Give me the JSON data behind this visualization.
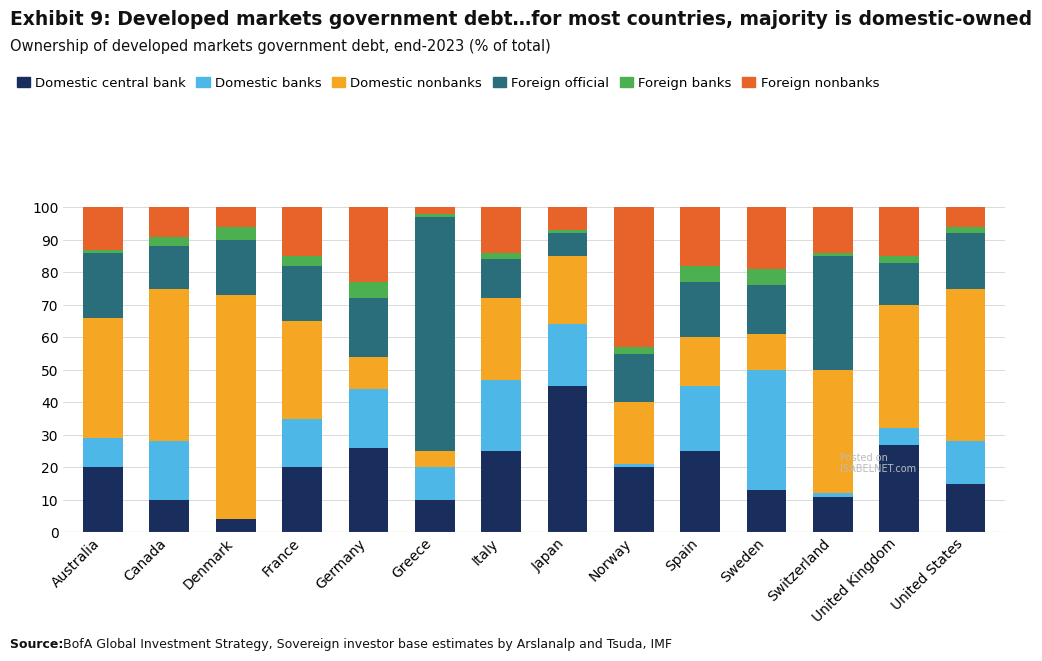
{
  "title_bold": "Exhibit 9: Developed markets government debt…for most countries, majority is domestic-owned",
  "title_sub": "Ownership of developed markets government debt, end-2023 (% of total)",
  "source": "BofA Global Investment Strategy, Sovereign investor base estimates by Arslanalp and Tsuda, IMF",
  "categories": [
    "Australia",
    "Canada",
    "Denmark",
    "France",
    "Germany",
    "Greece",
    "Italy",
    "Japan",
    "Norway",
    "Spain",
    "Sweden",
    "Switzerland",
    "United Kingdom",
    "United States"
  ],
  "series": {
    "Domestic central bank": [
      20,
      10,
      4,
      20,
      26,
      10,
      25,
      45,
      20,
      25,
      13,
      11,
      27,
      15
    ],
    "Domestic banks": [
      9,
      18,
      0,
      15,
      18,
      10,
      22,
      19,
      1,
      20,
      37,
      1,
      5,
      13
    ],
    "Domestic nonbanks": [
      37,
      47,
      69,
      30,
      10,
      5,
      25,
      21,
      19,
      15,
      11,
      38,
      38,
      47
    ],
    "Foreign official": [
      20,
      13,
      17,
      17,
      18,
      72,
      12,
      7,
      15,
      17,
      15,
      35,
      13,
      17
    ],
    "Foreign banks": [
      1,
      3,
      4,
      3,
      5,
      1,
      2,
      1,
      2,
      5,
      5,
      1,
      2,
      2
    ],
    "Foreign nonbanks": [
      13,
      9,
      6,
      15,
      23,
      2,
      14,
      7,
      43,
      18,
      19,
      14,
      15,
      6
    ]
  },
  "colors": {
    "Domestic central bank": "#1a2e5e",
    "Domestic banks": "#4db8e8",
    "Domestic nonbanks": "#f5a623",
    "Foreign official": "#2a6e7c",
    "Foreign banks": "#4caf50",
    "Foreign nonbanks": "#e8632a"
  },
  "ylim": [
    0,
    100
  ],
  "yticks": [
    0,
    10,
    20,
    30,
    40,
    50,
    60,
    70,
    80,
    90,
    100
  ],
  "background_color": "#ffffff",
  "title_fontsize": 13.5,
  "subtitle_fontsize": 10.5,
  "legend_fontsize": 9.5,
  "tick_fontsize": 10,
  "source_fontsize": 9
}
